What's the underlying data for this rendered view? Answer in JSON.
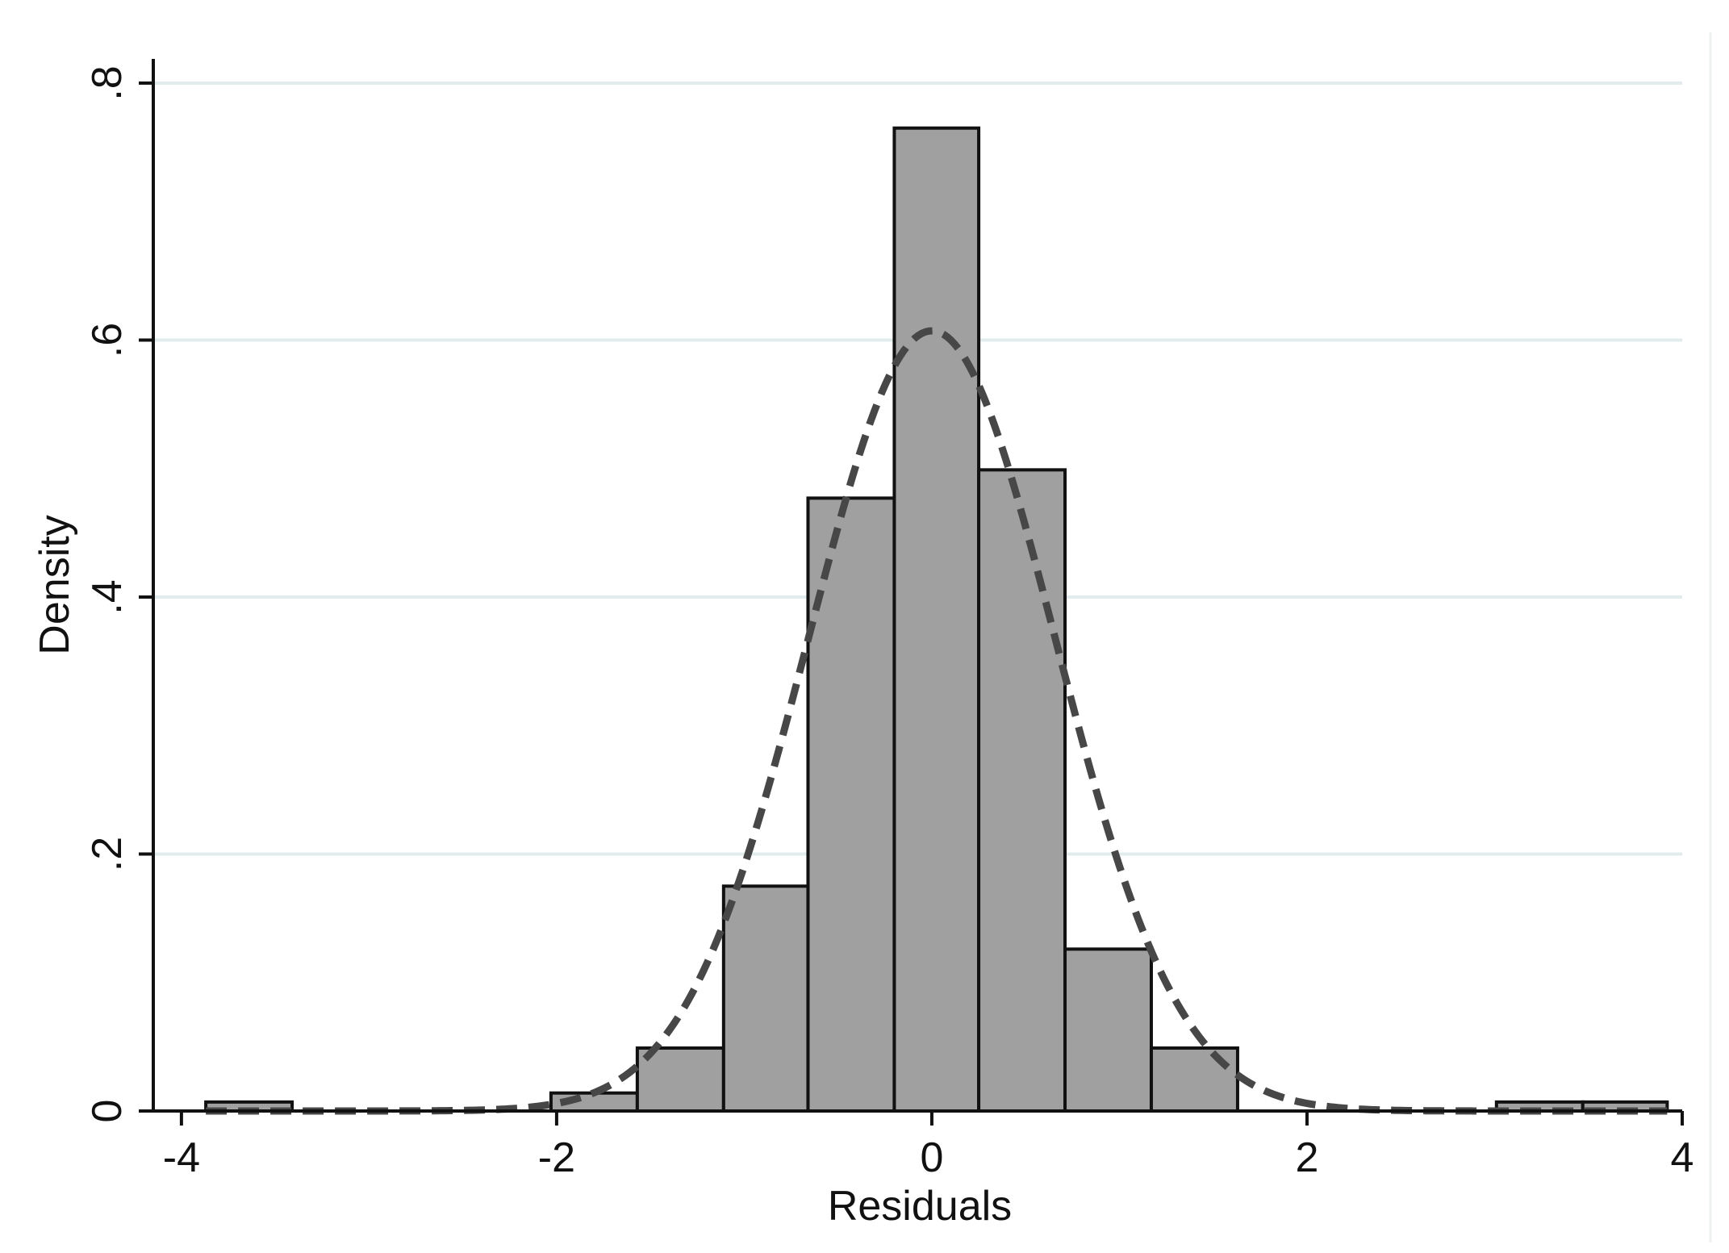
{
  "chart_data": {
    "type": "histogram",
    "xlabel": "Residuals",
    "ylabel": "Density",
    "xlim": [
      -4.15,
      4.0
    ],
    "ylim": [
      0,
      0.8
    ],
    "grid": true,
    "x_ticks": [
      {
        "value": -4,
        "label": "-4"
      },
      {
        "value": -2,
        "label": "-2"
      },
      {
        "value": 0,
        "label": "0"
      },
      {
        "value": 2,
        "label": "2"
      },
      {
        "value": 4,
        "label": "4"
      }
    ],
    "y_ticks": [
      {
        "value": 0,
        "label": "0"
      },
      {
        "value": 0.2,
        "label": ".2"
      },
      {
        "value": 0.4,
        "label": ".4"
      },
      {
        "value": 0.6,
        "label": ".6"
      },
      {
        "value": 0.8,
        "label": ".8"
      }
    ],
    "bins": [
      {
        "start": -3.87,
        "end": -3.41,
        "density": 0.007
      },
      {
        "start": -2.03,
        "end": -1.57,
        "density": 0.014
      },
      {
        "start": -1.57,
        "end": -1.11,
        "density": 0.049
      },
      {
        "start": -1.11,
        "end": -0.66,
        "density": 0.175
      },
      {
        "start": -0.66,
        "end": -0.2,
        "density": 0.477
      },
      {
        "start": -0.2,
        "end": 0.25,
        "density": 0.765
      },
      {
        "start": 0.25,
        "end": 0.71,
        "density": 0.499
      },
      {
        "start": 0.71,
        "end": 1.17,
        "density": 0.126
      },
      {
        "start": 1.17,
        "end": 1.63,
        "density": 0.049
      },
      {
        "start": 3.01,
        "end": 3.47,
        "density": 0.007
      },
      {
        "start": 3.47,
        "end": 3.92,
        "density": 0.007
      }
    ],
    "overlay": {
      "type": "normal-density",
      "style": "dashed",
      "mean": 0.0,
      "sd": 0.657,
      "x_range": [
        -3.87,
        3.92
      ]
    },
    "colors": {
      "bar_fill": "#a0a0a0",
      "bar_stroke": "#111111",
      "curve": "#474747",
      "grid": "#e3ecec",
      "axis": "#111111"
    }
  }
}
